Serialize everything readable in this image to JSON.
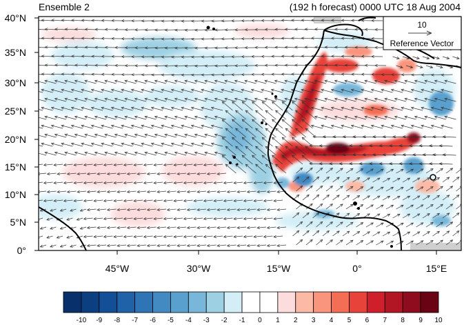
{
  "header": {
    "left_title": "Ensemble 2",
    "right_title": "(192 h forecast) 0000 UTC 18 Aug 2004"
  },
  "map": {
    "lat_labels": [
      "0°",
      "5°N",
      "10°N",
      "15°N",
      "20°N",
      "25°N",
      "30°N",
      "35°N",
      "40°N"
    ],
    "lon_labels": [
      "45°W",
      "30°W",
      "15°W",
      "0°",
      "15°E"
    ],
    "reference_vector": {
      "magnitude": "10",
      "label": "Reference Vector"
    }
  },
  "colorbar": {
    "labels": [
      "-10",
      "-9",
      "-8",
      "-7",
      "-6",
      "-5",
      "-4",
      "-3",
      "-2",
      "-1",
      "0",
      "1",
      "2",
      "3",
      "4",
      "5",
      "6",
      "7",
      "8",
      "9",
      "10"
    ],
    "colors": [
      "#08306b",
      "#0b3f80",
      "#134f96",
      "#2062a8",
      "#2f74b5",
      "#4389c2",
      "#5aa0cf",
      "#78b7da",
      "#9dd0e3",
      "#d3eef7",
      "#ffffff",
      "#ffffff",
      "#fcdcdc",
      "#fbb9a6",
      "#f9947d",
      "#f46d55",
      "#e8433a",
      "#cf1f2b",
      "#b21624",
      "#8e0c1e",
      "#6a0414"
    ]
  }
}
